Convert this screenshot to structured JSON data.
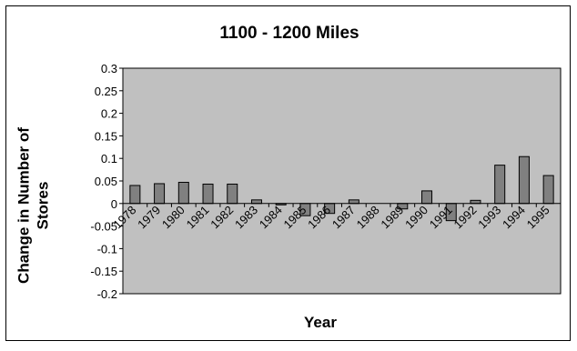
{
  "chart_data": {
    "type": "bar",
    "title": "1100 - 1200 Miles",
    "xlabel": "Year",
    "ylabel": "Change in Number of Stores",
    "ylabel_lines": [
      "Change in Number of",
      "Stores"
    ],
    "ylim": [
      -0.2,
      0.3
    ],
    "yticks": [
      "0.3",
      "0.25",
      "0.2",
      "0.15",
      "0.1",
      "0.05",
      "0",
      "-0.05",
      "-0.1",
      "-0.15",
      "-0.2"
    ],
    "ytick_values": [
      0.3,
      0.25,
      0.2,
      0.15,
      0.1,
      0.05,
      0,
      -0.05,
      -0.1,
      -0.15,
      -0.2
    ],
    "categories": [
      "1978",
      "1979",
      "1980",
      "1981",
      "1982",
      "1983",
      "1984",
      "1985",
      "1986",
      "1987",
      "1988",
      "1989",
      "1990",
      "1991",
      "1992",
      "1993",
      "1994",
      "1995"
    ],
    "values": [
      0.04,
      0.044,
      0.047,
      0.043,
      0.043,
      0.008,
      -0.003,
      -0.027,
      -0.022,
      0.008,
      0,
      -0.012,
      0.028,
      -0.038,
      0.007,
      0.085,
      0.104,
      0.062
    ],
    "grid": false,
    "legend": "none"
  },
  "colors": {
    "plot_background": "#c0c0c0",
    "bar_fill": "#808080",
    "bar_stroke": "#000000",
    "frame": "#000000",
    "text": "#000000"
  }
}
